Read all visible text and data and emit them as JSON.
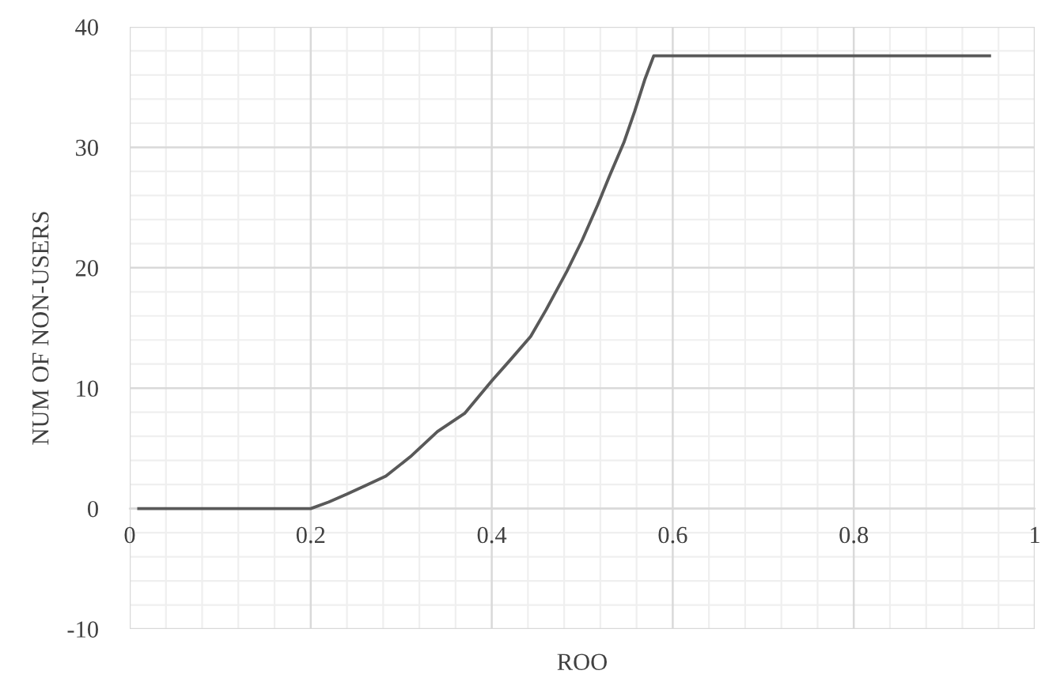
{
  "chart_data": {
    "type": "line",
    "xlabel": "ROO",
    "ylabel": "NUM OF NON-USERS",
    "x": [
      0.01,
      0.2,
      0.22,
      0.24,
      0.26,
      0.283,
      0.31,
      0.34,
      0.37,
      0.4,
      0.42,
      0.443,
      0.46,
      0.483,
      0.5,
      0.517,
      0.53,
      0.546,
      0.558,
      0.569,
      0.579,
      0.95
    ],
    "series": [
      {
        "color": "#595959",
        "values": [
          0,
          0,
          0.55,
          1.2,
          1.9,
          2.7,
          4.3,
          6.4,
          7.9,
          10.6,
          12.3,
          14.3,
          16.5,
          19.7,
          22.3,
          25.2,
          27.6,
          30.4,
          33.0,
          35.6,
          37.6,
          37.6
        ]
      }
    ],
    "xlim": [
      0,
      1
    ],
    "xticks": [
      0,
      0.2,
      0.4,
      0.6,
      0.8,
      1
    ],
    "ylim": [
      -10,
      40
    ],
    "yticks": [
      -10,
      0,
      10,
      20,
      30,
      40
    ],
    "grid": true,
    "marker": "none",
    "line_style": "solid"
  }
}
